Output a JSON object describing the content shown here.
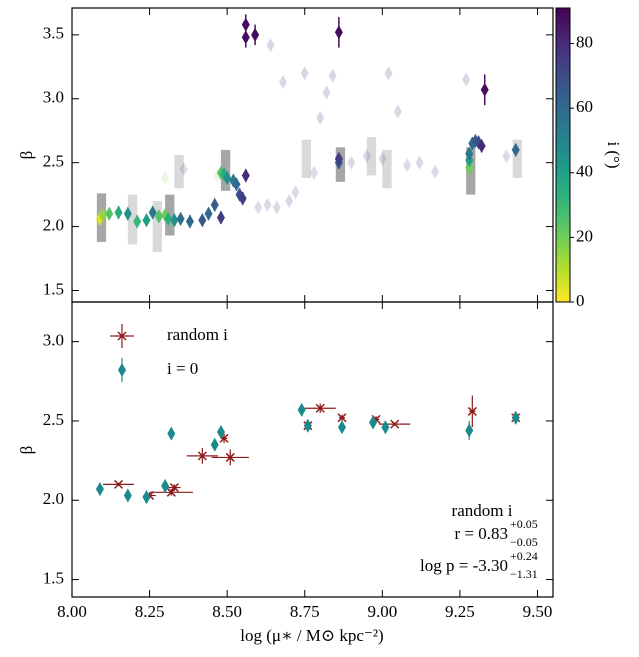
{
  "chart_data": [
    {
      "type": "scatter",
      "ylabel": "β",
      "xlim": [
        8.0,
        9.55
      ],
      "ylim": [
        1.41,
        3.71
      ],
      "yticks": [
        {
          "value": 1.5,
          "label": "1.5"
        },
        {
          "value": 2.0,
          "label": "2.0"
        },
        {
          "value": 2.5,
          "label": "2.5"
        },
        {
          "value": 3.0,
          "label": "3.0"
        },
        {
          "value": 3.5,
          "label": "3.5"
        }
      ],
      "colorbar": {
        "label": "i (°)",
        "clim": [
          0,
          91
        ],
        "ticks": [
          0,
          20,
          40,
          60,
          80
        ],
        "colormap": "viridis_r"
      },
      "boxes": {
        "x0": [
          8.08,
          8.18,
          8.26,
          8.3,
          8.33,
          8.48,
          8.74,
          8.85,
          8.95,
          9.0,
          9.27,
          9.42
        ],
        "x1": [
          8.11,
          8.21,
          8.29,
          8.33,
          8.36,
          8.51,
          8.77,
          8.88,
          8.98,
          9.03,
          9.3,
          9.45
        ],
        "y0": [
          1.88,
          1.86,
          1.8,
          1.93,
          2.3,
          2.28,
          2.38,
          2.35,
          2.4,
          2.3,
          2.25,
          2.38
        ],
        "y1": [
          2.26,
          2.25,
          2.2,
          2.25,
          2.56,
          2.6,
          2.68,
          2.62,
          2.7,
          2.6,
          2.62,
          2.68
        ],
        "alpha": [
          0.35,
          0.15,
          0.15,
          0.35,
          0.15,
          0.35,
          0.15,
          0.35,
          0.15,
          0.15,
          0.35,
          0.15
        ]
      },
      "faint_points": {
        "x": [
          8.36,
          8.6,
          8.63,
          8.66,
          8.68,
          8.7,
          8.72,
          8.64,
          8.75,
          8.78,
          8.8,
          8.82,
          8.84,
          8.9,
          8.95,
          9.0,
          9.02,
          9.05,
          9.08,
          9.12,
          9.17,
          9.27,
          9.4,
          8.3,
          8.47
        ],
        "y": [
          2.45,
          2.15,
          2.17,
          2.15,
          3.13,
          2.2,
          2.27,
          3.42,
          3.2,
          2.42,
          2.85,
          3.05,
          3.18,
          2.5,
          2.55,
          2.53,
          3.2,
          2.9,
          2.48,
          2.5,
          2.43,
          3.15,
          2.55,
          2.38,
          2.4
        ],
        "i": [
          75,
          80,
          82,
          80,
          85,
          82,
          80,
          85,
          85,
          80,
          85,
          85,
          85,
          82,
          80,
          80,
          85,
          85,
          80,
          82,
          80,
          85,
          80,
          15,
          20
        ]
      },
      "points": {
        "x": [
          8.09,
          8.1,
          8.12,
          8.15,
          8.18,
          8.21,
          8.24,
          8.26,
          8.28,
          8.3,
          8.31,
          8.33,
          8.35,
          8.38,
          8.42,
          8.44,
          8.46,
          8.48,
          8.48,
          8.49,
          8.5,
          8.52,
          8.53,
          8.54,
          8.55,
          8.56,
          8.56,
          8.56,
          8.59,
          8.86,
          9.33,
          8.86,
          8.86,
          9.28,
          9.28,
          9.28,
          9.29,
          9.3,
          9.31,
          9.32,
          9.43
        ],
        "y": [
          2.06,
          2.09,
          2.1,
          2.11,
          2.1,
          2.04,
          2.05,
          2.11,
          2.08,
          2.09,
          2.06,
          2.05,
          2.06,
          2.04,
          2.05,
          2.1,
          2.17,
          2.07,
          2.42,
          2.41,
          2.38,
          2.36,
          2.33,
          2.25,
          2.22,
          2.4,
          3.58,
          3.48,
          3.5,
          3.52,
          3.07,
          2.5,
          2.53,
          2.46,
          2.52,
          2.57,
          2.65,
          2.67,
          2.66,
          2.63,
          2.6
        ],
        "yerr": [
          0.05,
          0.05,
          0.05,
          0.05,
          0.05,
          0.05,
          0.05,
          0.05,
          0.05,
          0.05,
          0.05,
          0.05,
          0.05,
          0.05,
          0.05,
          0.05,
          0.05,
          0.05,
          0.05,
          0.05,
          0.05,
          0.05,
          0.05,
          0.05,
          0.05,
          0.05,
          0.08,
          0.08,
          0.08,
          0.12,
          0.12,
          0.05,
          0.05,
          0.06,
          0.05,
          0.05,
          0.05,
          0.05,
          0.05,
          0.05,
          0.05
        ],
        "i": [
          5,
          15,
          25,
          35,
          45,
          30,
          40,
          55,
          25,
          20,
          35,
          45,
          60,
          60,
          65,
          60,
          65,
          75,
          25,
          35,
          45,
          55,
          60,
          70,
          75,
          80,
          88,
          88,
          88,
          88,
          88,
          65,
          75,
          20,
          40,
          55,
          60,
          65,
          70,
          80,
          60
        ]
      }
    },
    {
      "type": "scatter",
      "ylabel": "β",
      "xlabel": "log (μ∗ / M⊙ kpc⁻²)",
      "xlim": [
        8.0,
        9.55
      ],
      "ylim": [
        1.39,
        3.25
      ],
      "xticks": [
        {
          "value": 8.0,
          "label": "8.00"
        },
        {
          "value": 8.25,
          "label": "8.25"
        },
        {
          "value": 8.5,
          "label": "8.50"
        },
        {
          "value": 8.75,
          "label": "8.75"
        },
        {
          "value": 9.0,
          "label": "9.00"
        },
        {
          "value": 9.25,
          "label": "9.25"
        },
        {
          "value": 9.5,
          "label": "9.50"
        }
      ],
      "yticks": [
        {
          "value": 1.5,
          "label": "1.5"
        },
        {
          "value": 2.0,
          "label": "2.0"
        },
        {
          "value": 2.5,
          "label": "2.5"
        },
        {
          "value": 3.0,
          "label": "3.0"
        }
      ],
      "legend": "upper left",
      "series": [
        {
          "name": "random i",
          "color": "#8b1a1a",
          "marker": "x",
          "x": [
            8.15,
            8.25,
            8.32,
            8.33,
            8.42,
            8.49,
            8.51,
            8.76,
            8.8,
            8.87,
            8.98,
            9.04,
            9.29,
            9.43
          ],
          "values": [
            2.1,
            2.03,
            2.05,
            2.08,
            2.28,
            2.39,
            2.27,
            2.47,
            2.58,
            2.52,
            2.51,
            2.48,
            2.56,
            2.52
          ],
          "xerr": [
            0.05,
            0.02,
            0.07,
            0.02,
            0.05,
            0.01,
            0.06,
            0.01,
            0.05,
            0.01,
            0.01,
            0.05,
            0.01,
            0.01
          ],
          "yerr": [
            0.01,
            0.02,
            0.02,
            0.02,
            0.05,
            0.03,
            0.05,
            0.03,
            0.03,
            0.02,
            0.02,
            0.01,
            0.1,
            0.02
          ]
        },
        {
          "name": "i = 0",
          "color": "#1b8a8c",
          "marker": "diamond",
          "x": [
            8.09,
            8.18,
            8.24,
            8.3,
            8.32,
            8.46,
            8.48,
            8.74,
            8.76,
            8.87,
            8.97,
            9.01,
            9.28,
            9.43
          ],
          "values": [
            2.07,
            2.03,
            2.02,
            2.09,
            2.42,
            2.35,
            2.43,
            2.57,
            2.47,
            2.46,
            2.49,
            2.46,
            2.44,
            2.52
          ],
          "yerr": [
            0.04,
            0.04,
            0.04,
            0.04,
            0.03,
            0.03,
            0.04,
            0.03,
            0.03,
            0.03,
            0.03,
            0.04,
            0.06,
            0.04
          ]
        }
      ],
      "annotation": {
        "title": "random i",
        "r": "r = 0.83",
        "r_upper": "+0.05",
        "r_lower": "−0.05",
        "p": "log p = -3.30",
        "p_upper": "+0.24",
        "p_lower": "−1.31"
      }
    }
  ]
}
